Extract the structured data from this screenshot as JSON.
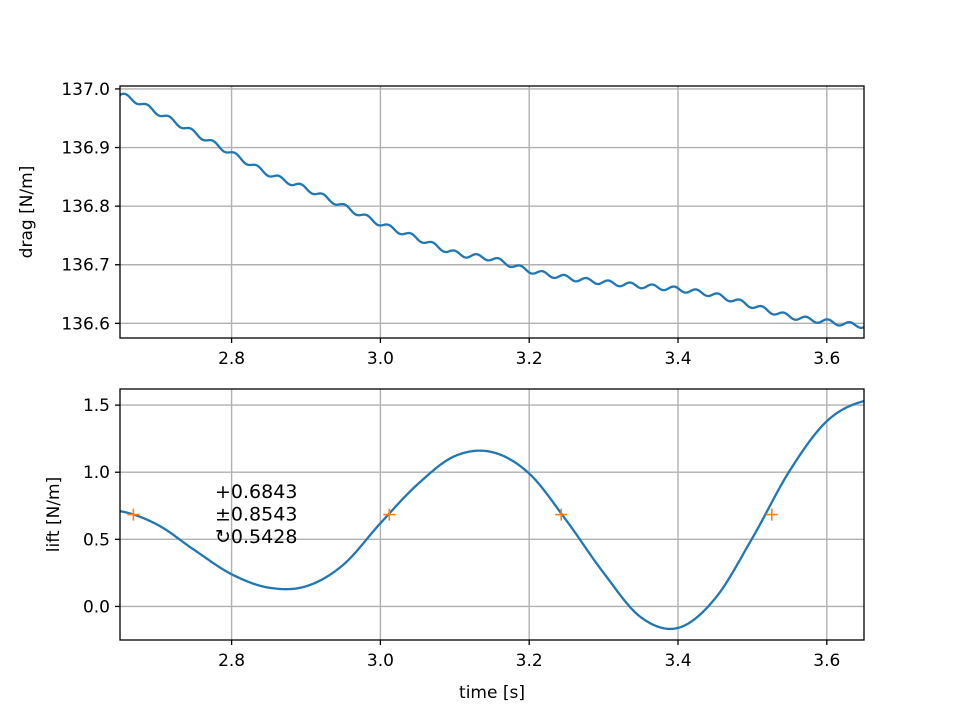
{
  "chart_data": [
    {
      "type": "line",
      "title": "",
      "xlabel": "",
      "ylabel": "drag [N/m]",
      "xlim": [
        2.65,
        3.65
      ],
      "ylim": [
        136.575,
        137.005
      ],
      "xticks": [
        2.8,
        3.0,
        3.2,
        3.4,
        3.6
      ],
      "xtick_labels": [
        "2.8",
        "3.0",
        "3.2",
        "3.4",
        "3.6"
      ],
      "yticks": [
        136.6,
        136.7,
        136.8,
        136.9,
        137.0
      ],
      "ytick_labels": [
        "136.6",
        "136.7",
        "136.8",
        "136.9",
        "137.0"
      ],
      "grid": true,
      "legend": "none",
      "series": [
        {
          "color": "#1f77b4",
          "x": [
            2.65,
            2.7,
            2.75,
            2.8,
            2.85,
            2.9,
            2.95,
            3.0,
            3.05,
            3.1,
            3.15,
            3.2,
            3.25,
            3.3,
            3.35,
            3.4,
            3.45,
            3.5,
            3.55,
            3.6,
            3.65
          ],
          "y": [
            136.99,
            136.96,
            136.925,
            136.89,
            136.855,
            136.83,
            136.8,
            136.77,
            136.745,
            136.72,
            136.71,
            136.69,
            136.678,
            136.67,
            136.664,
            136.658,
            136.648,
            136.63,
            136.612,
            136.603,
            136.596
          ],
          "oscillation": {
            "amplitude": 0.004,
            "period": 0.0295
          }
        }
      ]
    },
    {
      "type": "line",
      "title": "",
      "xlabel": "time [s]",
      "ylabel": "lift [N/m]",
      "xlim": [
        2.65,
        3.65
      ],
      "ylim": [
        -0.25,
        1.62
      ],
      "xticks": [
        2.8,
        3.0,
        3.2,
        3.4,
        3.6
      ],
      "xtick_labels": [
        "2.8",
        "3.0",
        "3.2",
        "3.4",
        "3.6"
      ],
      "yticks": [
        0.0,
        0.5,
        1.0,
        1.5
      ],
      "ytick_labels": [
        "0.0",
        "0.5",
        "1.0",
        "1.5"
      ],
      "grid": true,
      "legend": "none",
      "series": [
        {
          "color": "#1f77b4",
          "x": [
            2.65,
            2.7,
            2.75,
            2.8,
            2.85,
            2.9,
            2.95,
            3.0,
            3.05,
            3.1,
            3.15,
            3.2,
            3.25,
            3.3,
            3.35,
            3.4,
            3.45,
            3.5,
            3.55,
            3.6,
            3.65
          ],
          "y": [
            0.71,
            0.61,
            0.42,
            0.24,
            0.14,
            0.15,
            0.31,
            0.62,
            0.91,
            1.12,
            1.15,
            0.99,
            0.64,
            0.25,
            -0.08,
            -0.16,
            0.06,
            0.51,
            1.01,
            1.38,
            1.53
          ]
        }
      ],
      "markers": {
        "color": "#ff7f0e",
        "symbol": "+",
        "x": [
          2.668,
          3.012,
          3.243,
          3.526
        ],
        "y": [
          0.6843,
          0.6843,
          0.6843,
          0.6843
        ]
      },
      "annotations": [
        "+0.6843",
        "±0.8543",
        "↻0.5428"
      ]
    }
  ]
}
